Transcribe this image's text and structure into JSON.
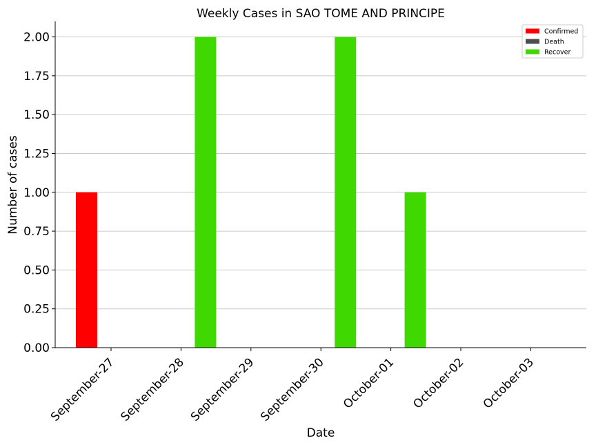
{
  "chart_data": {
    "type": "bar",
    "title": "Weekly Cases in SAO TOME AND PRINCIPE",
    "xlabel": "Date",
    "ylabel": "Number of cases",
    "categories": [
      "September-27",
      "September-28",
      "September-29",
      "September-30",
      "October-01",
      "October-02",
      "October-03"
    ],
    "series": [
      {
        "name": "Confirmed",
        "color": "#ff0000",
        "values": [
          1,
          0,
          0,
          0,
          0,
          0,
          0
        ]
      },
      {
        "name": "Death",
        "color": "#4d4d4d",
        "values": [
          0,
          0,
          0,
          0,
          0,
          0,
          0
        ]
      },
      {
        "name": "Recover",
        "color": "#3fd800",
        "values": [
          0,
          2,
          0,
          2,
          1,
          0,
          0
        ]
      }
    ],
    "ylim": [
      0,
      2.1
    ],
    "yticks": [
      "0.00",
      "0.25",
      "0.50",
      "0.75",
      "1.00",
      "1.25",
      "1.50",
      "1.75",
      "2.00"
    ],
    "grid": "y",
    "legend_position": "top-right"
  }
}
